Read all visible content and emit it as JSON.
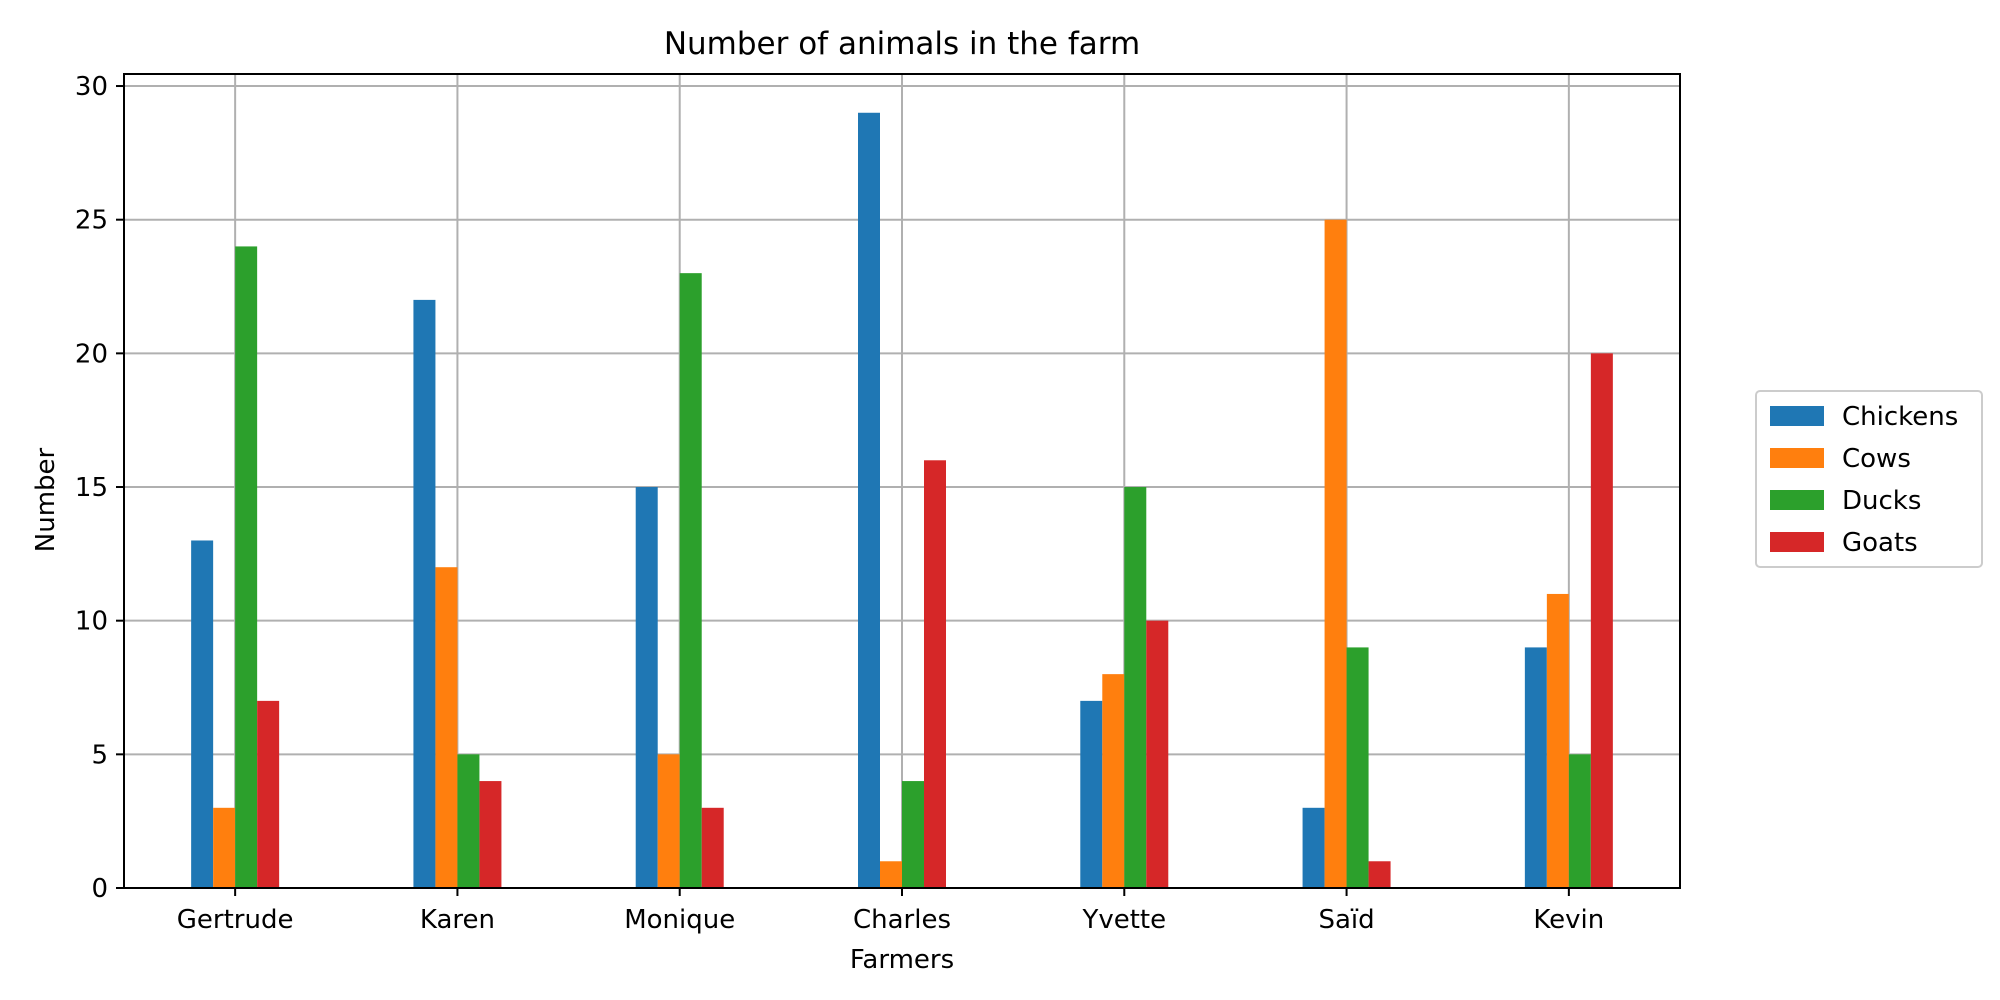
{
  "chart_data": {
    "type": "bar",
    "title": "Number of animals in the farm",
    "xlabel": "Farmers",
    "ylabel": "Number",
    "categories": [
      "Gertrude",
      "Karen",
      "Monique",
      "Charles",
      "Yvette",
      "Saïd",
      "Kevin"
    ],
    "series": [
      {
        "name": "Chickens",
        "color": "#1f77b4",
        "values": [
          13,
          22,
          15,
          29,
          7,
          3,
          9
        ]
      },
      {
        "name": "Cows",
        "color": "#ff7f0e",
        "values": [
          3,
          12,
          5,
          1,
          8,
          25,
          11
        ]
      },
      {
        "name": "Ducks",
        "color": "#2ca02c",
        "values": [
          24,
          5,
          23,
          4,
          15,
          9,
          5
        ]
      },
      {
        "name": "Goats",
        "color": "#d62728",
        "values": [
          7,
          4,
          3,
          16,
          10,
          1,
          20
        ]
      }
    ],
    "ylim": [
      0,
      30.45
    ],
    "yticks": [
      0,
      5,
      10,
      15,
      20,
      25,
      30
    ],
    "grid": true,
    "legend_position": "right"
  }
}
